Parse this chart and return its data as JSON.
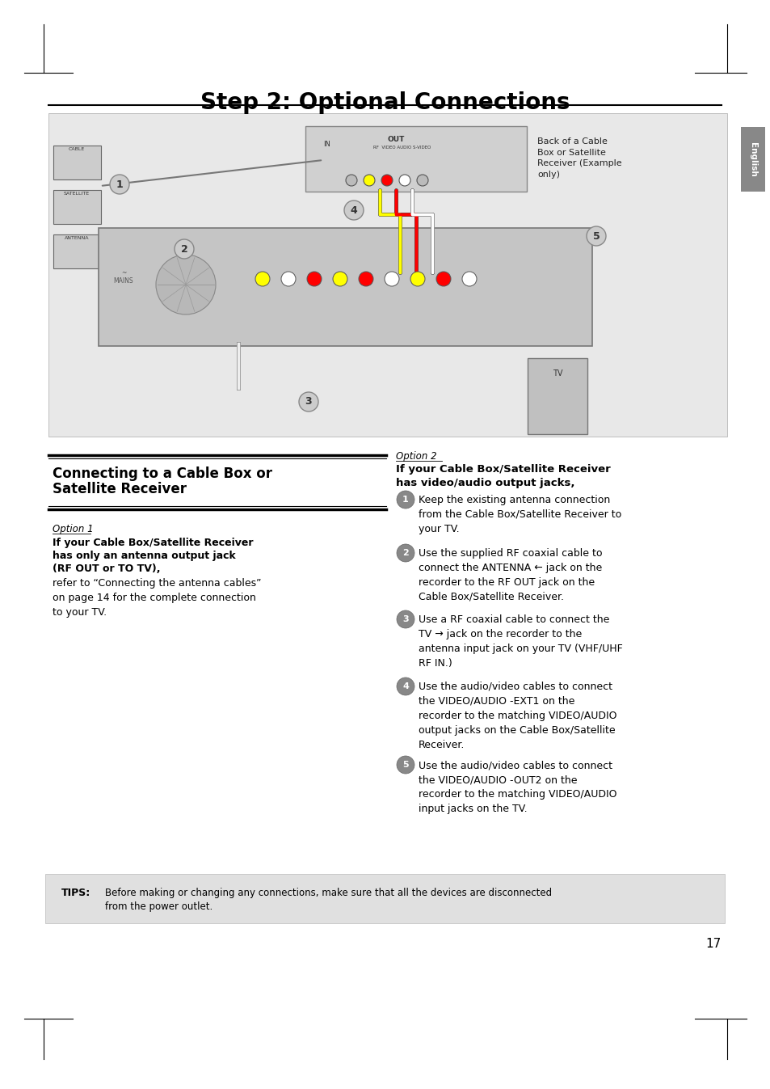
{
  "title": "Step 2: Optional Connections",
  "bg_color": "#ffffff",
  "section_header_line1": "Connecting to a Cable Box or",
  "section_header_line2": "Satellite Receiver",
  "option1_title": "Option 1",
  "option1_bold_line1": "If your Cable Box/Satellite Receiver",
  "option1_bold_line2": "has only an antenna output jack",
  "option1_bold_line3": "(RF OUT or TO TV),",
  "option1_text": "refer to “Connecting the antenna cables”\non page 14 for the complete connection\nto your TV.",
  "option2_title": "Option 2",
  "option2_bold_line1": "If your Cable Box/Satellite Receiver",
  "option2_bold_line2": "has video/audio output jacks,",
  "step1": "Keep the existing antenna connection\nfrom the Cable Box/Satellite Receiver to\nyour TV.",
  "step2a": "Use the supplied RF coaxial cable to\nconnect the ",
  "step2b": "ANTENNA ←",
  "step2c": " jack on the\nrecorder to the RF OUT jack on the\nCable Box/Satellite Receiver.",
  "step3a": "Use a RF coaxial cable to connect the\n",
  "step3b": "TV →",
  "step3c": " jack on the recorder to the\nantenna input jack on your TV (VHF/UHF\nRF IN.)",
  "step4a": "Use the audio/video cables to connect\nthe ",
  "step4b": "VIDEO/AUDIO -EXT1",
  "step4c": " on the\nrecorder to the matching VIDEO/AUDIO\noutput jacks on the Cable Box/Satellite\nReceiver.",
  "step5a": "Use the audio/video cables to connect\nthe ",
  "step5b": "VIDEO/AUDIO -OUT2",
  "step5c": " on the\nrecorder to the matching VIDEO/AUDIO\ninput jacks on the TV.",
  "tips_label": "TIPS:",
  "tips_text": "Before making or changing any connections, make sure that all the devices are disconnected\nfrom the power outlet.",
  "page_number": "17",
  "english_tab": "English",
  "image_label_back": "Back of a Cable\nBox or Satellite\nReceiver (Example\nonly)"
}
